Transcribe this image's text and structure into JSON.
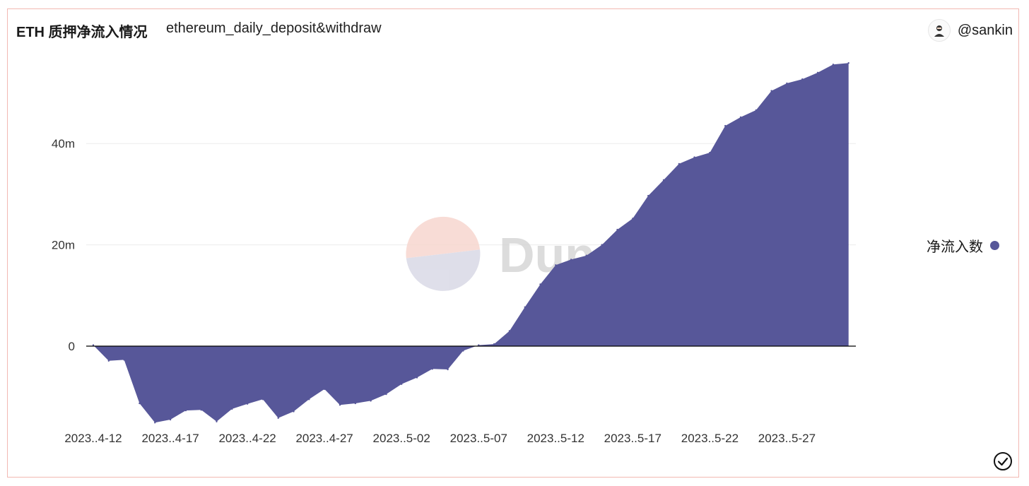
{
  "header": {
    "title": "ETH 质押净流入情况",
    "subtitle": "ethereum_daily_deposit&withdraw",
    "author": "@sankin"
  },
  "watermark": {
    "text": "Dune"
  },
  "colors": {
    "series": "#575799",
    "grid": "#ebebeb",
    "axis": "#000000",
    "border": "#f2b8b2"
  },
  "icons": {
    "avatar": "user-avatar-icon",
    "status": "check-circle-icon"
  },
  "chart_data": {
    "type": "area",
    "title": "",
    "xlabel": "",
    "ylabel": "",
    "ylim": [
      -16,
      56
    ],
    "y_ticks": [
      {
        "value": 0,
        "label": "0"
      },
      {
        "value": 20,
        "label": "20m"
      },
      {
        "value": 40,
        "label": "40m"
      }
    ],
    "x_ticks": [
      {
        "date": "2023-04-12",
        "label": "2023..4-12"
      },
      {
        "date": "2023-04-17",
        "label": "2023..4-17"
      },
      {
        "date": "2023-04-22",
        "label": "2023..4-22"
      },
      {
        "date": "2023-04-27",
        "label": "2023..4-27"
      },
      {
        "date": "2023-05-02",
        "label": "2023..5-02"
      },
      {
        "date": "2023-05-07",
        "label": "2023..5-07"
      },
      {
        "date": "2023-05-12",
        "label": "2023..5-12"
      },
      {
        "date": "2023-05-17",
        "label": "2023..5-17"
      },
      {
        "date": "2023-05-22",
        "label": "2023..5-22"
      },
      {
        "date": "2023-05-27",
        "label": "2023..5-27"
      }
    ],
    "grid": true,
    "legend_position": "right",
    "series": [
      {
        "name": "净流入数",
        "color": "#575799",
        "points": [
          [
            "2023-04-12",
            0.2
          ],
          [
            "2023-04-13",
            -2.9
          ],
          [
            "2023-04-14",
            -2.7
          ],
          [
            "2023-04-15",
            -11.3
          ],
          [
            "2023-04-16",
            -15.1
          ],
          [
            "2023-04-17",
            -14.5
          ],
          [
            "2023-04-18",
            -12.7
          ],
          [
            "2023-04-19",
            -12.6
          ],
          [
            "2023-04-20",
            -14.9
          ],
          [
            "2023-04-21",
            -12.4
          ],
          [
            "2023-04-22",
            -11.4
          ],
          [
            "2023-04-23",
            -10.5
          ],
          [
            "2023-04-24",
            -14.2
          ],
          [
            "2023-04-25",
            -12.9
          ],
          [
            "2023-04-26",
            -10.5
          ],
          [
            "2023-04-27",
            -8.5
          ],
          [
            "2023-04-28",
            -11.6
          ],
          [
            "2023-04-29",
            -11.3
          ],
          [
            "2023-04-30",
            -10.8
          ],
          [
            "2023-05-01",
            -9.5
          ],
          [
            "2023-05-02",
            -7.5
          ],
          [
            "2023-05-03",
            -6.2
          ],
          [
            "2023-05-04",
            -4.5
          ],
          [
            "2023-05-05",
            -4.6
          ],
          [
            "2023-05-06",
            -0.9
          ],
          [
            "2023-05-07",
            0.2
          ],
          [
            "2023-05-08",
            0.4
          ],
          [
            "2023-05-09",
            3.0
          ],
          [
            "2023-05-10",
            7.7
          ],
          [
            "2023-05-11",
            12.2
          ],
          [
            "2023-05-12",
            16.0
          ],
          [
            "2023-05-13",
            17.1
          ],
          [
            "2023-05-14",
            17.9
          ],
          [
            "2023-05-15",
            20.0
          ],
          [
            "2023-05-16",
            23.0
          ],
          [
            "2023-05-17",
            25.2
          ],
          [
            "2023-05-18",
            29.7
          ],
          [
            "2023-05-19",
            32.8
          ],
          [
            "2023-05-20",
            36.0
          ],
          [
            "2023-05-21",
            37.3
          ],
          [
            "2023-05-22",
            38.2
          ],
          [
            "2023-05-23",
            43.5
          ],
          [
            "2023-05-24",
            45.2
          ],
          [
            "2023-05-25",
            46.6
          ],
          [
            "2023-05-26",
            50.4
          ],
          [
            "2023-05-27",
            51.9
          ],
          [
            "2023-05-28",
            52.7
          ],
          [
            "2023-05-29",
            54.0
          ],
          [
            "2023-05-30",
            55.6
          ],
          [
            "2023-05-31",
            55.9
          ]
        ]
      }
    ]
  }
}
